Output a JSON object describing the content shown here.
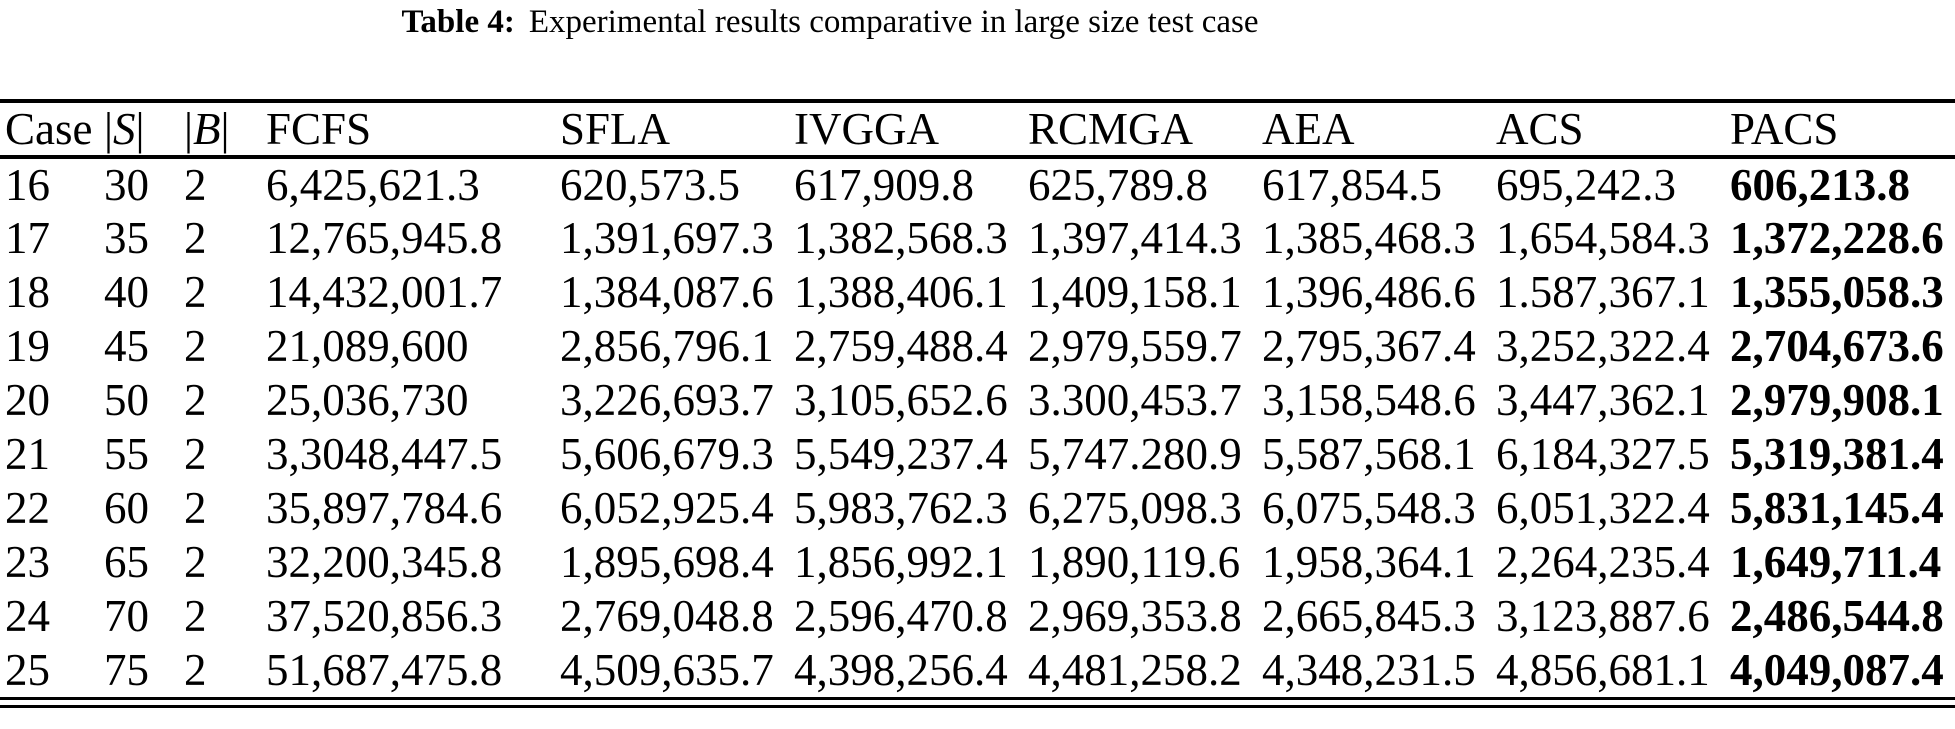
{
  "caption": {
    "label": "Table 4:",
    "text": "Experimental results comparative in large size test case"
  },
  "table": {
    "columns": [
      {
        "key": "case",
        "parts": [
          {
            "t": "Case"
          }
        ]
      },
      {
        "key": "s",
        "parts": [
          {
            "t": "|"
          },
          {
            "t": "S",
            "italic": true
          },
          {
            "t": "|"
          }
        ]
      },
      {
        "key": "b",
        "parts": [
          {
            "t": "|"
          },
          {
            "t": "B",
            "italic": true
          },
          {
            "t": "|"
          }
        ]
      },
      {
        "key": "fcfs",
        "parts": [
          {
            "t": "FCFS"
          }
        ]
      },
      {
        "key": "sfla",
        "parts": [
          {
            "t": "SFLA"
          }
        ]
      },
      {
        "key": "ivgga",
        "parts": [
          {
            "t": "IVGGA"
          }
        ]
      },
      {
        "key": "rcmga",
        "parts": [
          {
            "t": "RCMGA"
          }
        ]
      },
      {
        "key": "aea",
        "parts": [
          {
            "t": "AEA"
          }
        ]
      },
      {
        "key": "acs",
        "parts": [
          {
            "t": "ACS"
          }
        ]
      },
      {
        "key": "pacs",
        "parts": [
          {
            "t": "PACS"
          }
        ],
        "bold_values": true
      }
    ],
    "rows": [
      [
        "16",
        "30",
        "2",
        "6,425,621.3",
        "620,573.5",
        "617,909.8",
        "625,789.8",
        "617,854.5",
        "695,242.3",
        "606,213.8"
      ],
      [
        "17",
        "35",
        "2",
        "12,765,945.8",
        "1,391,697.3",
        "1,382,568.3",
        "1,397,414.3",
        "1,385,468.3",
        "1,654,584.3",
        "1,372,228.6"
      ],
      [
        "18",
        "40",
        "2",
        "14,432,001.7",
        "1,384,087.6",
        "1,388,406.1",
        "1,409,158.1",
        "1,396,486.6",
        "1.587,367.1",
        "1,355,058.3"
      ],
      [
        "19",
        "45",
        "2",
        "21,089,600",
        "2,856,796.1",
        "2,759,488.4",
        "2,979,559.7",
        "2,795,367.4",
        "3,252,322.4",
        "2,704,673.6"
      ],
      [
        "20",
        "50",
        "2",
        "25,036,730",
        "3,226,693.7",
        "3,105,652.6",
        "3.300,453.7",
        "3,158,548.6",
        "3,447,362.1",
        "2,979,908.1"
      ],
      [
        "21",
        "55",
        "2",
        "3,3048,447.5",
        "5,606,679.3",
        "5,549,237.4",
        "5,747.280.9",
        "5,587,568.1",
        "6,184,327.5",
        "5,319,381.4"
      ],
      [
        "22",
        "60",
        "2",
        "35,897,784.6",
        "6,052,925.4",
        "5,983,762.3",
        "6,275,098.3",
        "6,075,548.3",
        "6,051,322.4",
        "5,831,145.4"
      ],
      [
        "23",
        "65",
        "2",
        "32,200,345.8",
        "1,895,698.4",
        "1,856,992.1",
        "1,890,119.6",
        "1,958,364.1",
        "2,264,235.4",
        "1,649,711.4"
      ],
      [
        "24",
        "70",
        "2",
        "37,520,856.3",
        "2,769,048.8",
        "2,596,470.8",
        "2,969,353.8",
        "2,665,845.3",
        "3,123,887.6",
        "2,486,544.8"
      ],
      [
        "25",
        "75",
        "2",
        "51,687,475.8",
        "4,509,635.7",
        "4,398,256.4",
        "4,481,258.2",
        "4,348,231.5",
        "4,856,681.1",
        "4,049,087.4"
      ]
    ],
    "emphasized_column": "PACS"
  },
  "colors": {
    "text": "#000000",
    "background": "#ffffff",
    "rule": "#000000"
  }
}
